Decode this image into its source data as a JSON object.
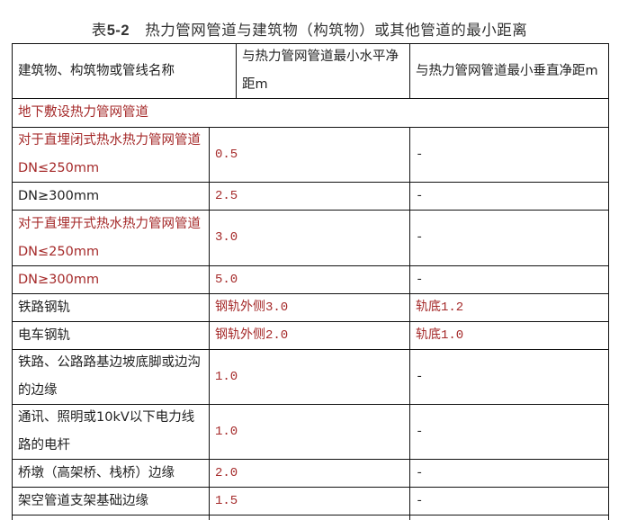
{
  "title_prefix": "表",
  "title_number": "5-2",
  "title_text": "热力管网管道与建筑物（构筑物）或其他管道的最小距离",
  "header": [
    "建筑物、构筑物或管线名称",
    "与热力管网管道最小水平净距m",
    "与热力管网管道最小垂直净距m"
  ],
  "section": "地下敷设热力管网管道",
  "rows": [
    {
      "name": "对于直埋闭式热水热力管网管道DN≤250mm",
      "h": "0.5",
      "v": "-",
      "name_red": true,
      "h_red": true,
      "v_red": false
    },
    {
      "name": "DN≥300mm",
      "h": "2.5",
      "v": "-",
      "name_red": false,
      "h_red": true,
      "v_red": false
    },
    {
      "name": "对于直埋开式热水热力管网管道DN≤250mm",
      "h": "3.0",
      "v": "-",
      "name_red": true,
      "h_red": true,
      "v_red": false
    },
    {
      "name": "DN≥300mm",
      "h": "5.0",
      "v": "-",
      "name_red": true,
      "h_red": true,
      "v_red": false
    },
    {
      "name": "铁路钢轨",
      "h": "钢轨外侧3.0",
      "v": "轨底1.2",
      "name_red": false,
      "h_red": true,
      "v_red": true
    },
    {
      "name": "电车钢轨",
      "h": "钢轨外侧2.0",
      "v": "轨底1.0",
      "name_red": false,
      "h_red": true,
      "v_red": true
    },
    {
      "name": "铁路、公路路基边坡底脚或边沟的边缘",
      "h": "1.0",
      "v": "-",
      "name_red": false,
      "h_red": true,
      "v_red": false
    },
    {
      "name": "通讯、照明或10kV以下电力线路的电杆",
      "h": "1.0",
      "v": "-",
      "name_red": false,
      "h_red": true,
      "v_red": false
    },
    {
      "name": "桥墩（高架桥、栈桥）边缘",
      "h": "2.0",
      "v": "-",
      "name_red": false,
      "h_red": true,
      "v_red": false
    },
    {
      "name": "架空管道支架基础边缘",
      "h": "1.5",
      "v": "-",
      "name_red": false,
      "h_red": true,
      "v_red": false
    }
  ],
  "colors": {
    "red_text": "#a52a2a",
    "black_text": "#222222",
    "border": "#111111"
  }
}
